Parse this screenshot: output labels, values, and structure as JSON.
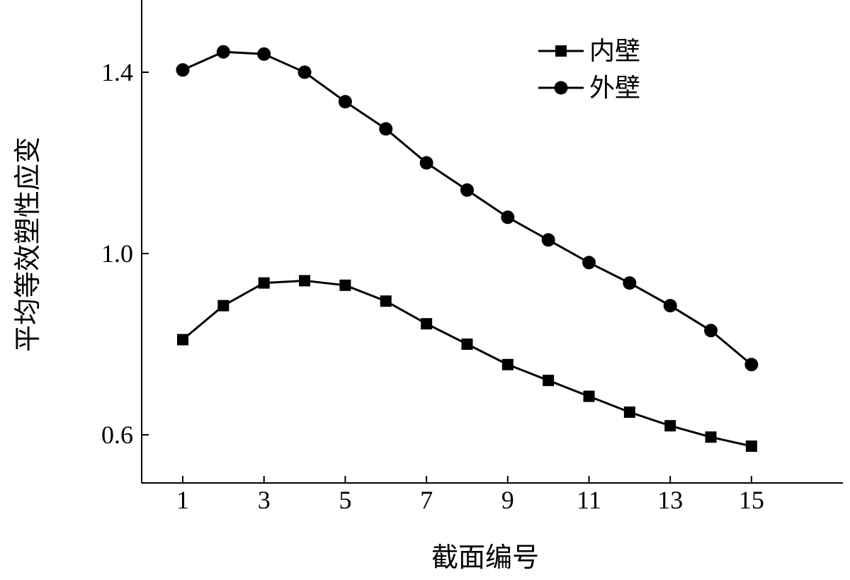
{
  "chart_data": {
    "type": "line",
    "xlabel": "截面编号",
    "ylabel": "平均等效塑性应变",
    "xlim": [
      0,
      17
    ],
    "ylim": [
      0.5,
      1.55
    ],
    "x_ticks": [
      1,
      3,
      5,
      7,
      9,
      11,
      13,
      15
    ],
    "y_ticks": [
      0.6,
      1.0,
      1.4
    ],
    "y_tick_labels": [
      "0.6",
      "1.0",
      "1.4"
    ],
    "grid": false,
    "legend_position": "top-right",
    "x": [
      1,
      2,
      3,
      4,
      5,
      6,
      7,
      8,
      9,
      10,
      11,
      12,
      13,
      14,
      15
    ],
    "series": [
      {
        "name": "内壁",
        "marker": "square",
        "color": "#000000",
        "values": [
          0.81,
          0.885,
          0.935,
          0.94,
          0.93,
          0.895,
          0.845,
          0.8,
          0.755,
          0.72,
          0.685,
          0.65,
          0.62,
          0.595,
          0.575
        ]
      },
      {
        "name": "外壁",
        "marker": "circle",
        "color": "#000000",
        "values": [
          1.405,
          1.445,
          1.44,
          1.4,
          1.335,
          1.275,
          1.2,
          1.14,
          1.08,
          1.03,
          0.98,
          0.935,
          0.885,
          0.83,
          0.755
        ]
      }
    ]
  }
}
